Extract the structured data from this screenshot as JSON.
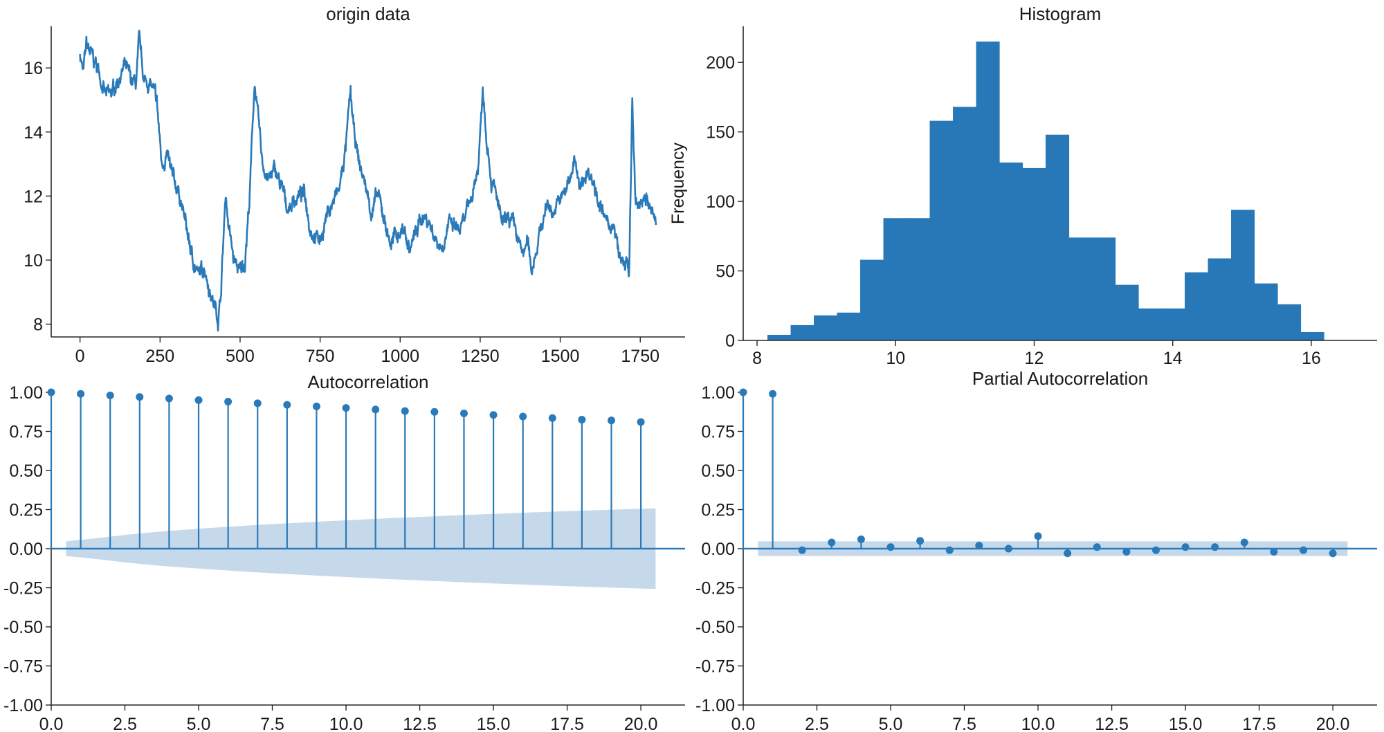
{
  "figure": {
    "theme_color": "#2a7ab9",
    "bar_color": "#2878b8",
    "band_color": "#c3d7ea",
    "background": "#ffffff"
  },
  "chart_data": [
    {
      "id": "origin",
      "type": "line",
      "title": "origin data",
      "xlabel": "",
      "ylabel": "",
      "xlim": [
        -90,
        1890
      ],
      "ylim": [
        7.6,
        17.3
      ],
      "xticks": [
        0,
        250,
        500,
        750,
        1000,
        1250,
        1500,
        1750
      ],
      "xtick_labels": [
        "0",
        "250",
        "500",
        "750",
        "1000",
        "1250",
        "1500",
        "1750"
      ],
      "yticks": [
        8,
        10,
        12,
        14,
        16
      ],
      "ytick_labels": [
        "8",
        "10",
        "12",
        "14",
        "16"
      ],
      "n_points": 1800,
      "anchors": [
        [
          0,
          16.5
        ],
        [
          10,
          15.8
        ],
        [
          20,
          16.7
        ],
        [
          40,
          16.3
        ],
        [
          60,
          15.9
        ],
        [
          80,
          15.1
        ],
        [
          100,
          15.2
        ],
        [
          120,
          15.7
        ],
        [
          140,
          16.0
        ],
        [
          160,
          15.6
        ],
        [
          175,
          15.5
        ],
        [
          185,
          16.8
        ],
        [
          200,
          15.6
        ],
        [
          220,
          15.5
        ],
        [
          240,
          14.9
        ],
        [
          255,
          13.0
        ],
        [
          270,
          13.3
        ],
        [
          290,
          12.5
        ],
        [
          310,
          12.1
        ],
        [
          330,
          11.1
        ],
        [
          350,
          10.1
        ],
        [
          370,
          9.5
        ],
        [
          390,
          9.8
        ],
        [
          410,
          8.9
        ],
        [
          420,
          8.6
        ],
        [
          432,
          8.2
        ],
        [
          440,
          9.0
        ],
        [
          455,
          12.1
        ],
        [
          465,
          11.0
        ],
        [
          480,
          10.0
        ],
        [
          500,
          9.6
        ],
        [
          515,
          10.0
        ],
        [
          530,
          12.0
        ],
        [
          545,
          15.6
        ],
        [
          560,
          14.0
        ],
        [
          570,
          13.0
        ],
        [
          590,
          12.5
        ],
        [
          610,
          12.8
        ],
        [
          630,
          12.2
        ],
        [
          650,
          11.6
        ],
        [
          670,
          11.9
        ],
        [
          700,
          12.1
        ],
        [
          710,
          11.6
        ],
        [
          720,
          11.0
        ],
        [
          750,
          10.6
        ],
        [
          770,
          11.4
        ],
        [
          790,
          11.8
        ],
        [
          810,
          12.2
        ],
        [
          830,
          13.5
        ],
        [
          845,
          15.2
        ],
        [
          855,
          14.0
        ],
        [
          870,
          13.1
        ],
        [
          890,
          12.4
        ],
        [
          910,
          11.5
        ],
        [
          930,
          12.0
        ],
        [
          950,
          11.3
        ],
        [
          970,
          10.5
        ],
        [
          990,
          10.8
        ],
        [
          1010,
          11.0
        ],
        [
          1030,
          10.3
        ],
        [
          1050,
          10.9
        ],
        [
          1070,
          11.4
        ],
        [
          1090,
          11.2
        ],
        [
          1110,
          10.7
        ],
        [
          1130,
          10.4
        ],
        [
          1150,
          11.1
        ],
        [
          1170,
          11.0
        ],
        [
          1190,
          10.9
        ],
        [
          1210,
          11.5
        ],
        [
          1230,
          12.3
        ],
        [
          1245,
          13.0
        ],
        [
          1258,
          15.5
        ],
        [
          1268,
          14.2
        ],
        [
          1285,
          12.5
        ],
        [
          1300,
          12.0
        ],
        [
          1320,
          11.0
        ],
        [
          1340,
          11.3
        ],
        [
          1360,
          10.9
        ],
        [
          1380,
          10.2
        ],
        [
          1400,
          10.5
        ],
        [
          1410,
          9.7
        ],
        [
          1425,
          10.4
        ],
        [
          1440,
          11.0
        ],
        [
          1460,
          11.8
        ],
        [
          1480,
          11.5
        ],
        [
          1500,
          11.9
        ],
        [
          1515,
          12.1
        ],
        [
          1530,
          12.6
        ],
        [
          1545,
          13.2
        ],
        [
          1560,
          12.1
        ],
        [
          1575,
          12.6
        ],
        [
          1590,
          12.8
        ],
        [
          1610,
          12.3
        ],
        [
          1630,
          11.5
        ],
        [
          1650,
          11.0
        ],
        [
          1660,
          11.2
        ],
        [
          1670,
          10.8
        ],
        [
          1690,
          9.9
        ],
        [
          1710,
          9.9
        ],
        [
          1715,
          9.3
        ],
        [
          1725,
          15.0
        ],
        [
          1735,
          11.6
        ],
        [
          1750,
          11.8
        ],
        [
          1765,
          12.1
        ],
        [
          1780,
          11.6
        ],
        [
          1790,
          11.3
        ],
        [
          1799,
          11.2
        ]
      ]
    },
    {
      "id": "histogram",
      "type": "bar",
      "title": "Histogram",
      "xlabel": "",
      "ylabel": "Frequency",
      "xlim": [
        7.8,
        16.95
      ],
      "ylim": [
        0,
        226
      ],
      "xticks": [
        8,
        10,
        12,
        14,
        16
      ],
      "xtick_labels": [
        "8",
        "10",
        "12",
        "14",
        "16"
      ],
      "yticks": [
        0,
        50,
        100,
        150,
        200
      ],
      "ytick_labels": [
        "0",
        "50",
        "100",
        "150",
        "200"
      ],
      "bins": 26,
      "bin_start": 8.15,
      "bin_end": 16.85,
      "values": [
        4,
        11,
        18,
        20,
        58,
        88,
        88,
        158,
        168,
        215,
        128,
        124,
        148,
        74,
        74,
        40,
        23,
        23,
        49,
        59,
        94,
        41,
        26,
        6,
        0,
        0
      ]
    },
    {
      "id": "acf",
      "type": "stem",
      "title": "Autocorrelation",
      "xlabel": "",
      "ylabel": "",
      "xlim": [
        0,
        21.5
      ],
      "ylim": [
        -1.0,
        1.0
      ],
      "xticks": [
        0.0,
        2.5,
        5.0,
        7.5,
        10.0,
        12.5,
        15.0,
        17.5,
        20.0
      ],
      "xtick_labels": [
        "0.0",
        "2.5",
        "5.0",
        "7.5",
        "10.0",
        "12.5",
        "15.0",
        "17.5",
        "20.0"
      ],
      "yticks": [
        1.0,
        0.75,
        0.5,
        0.25,
        0.0,
        -0.25,
        -0.5,
        -0.75,
        -1.0
      ],
      "ytick_labels": [
        "1.00",
        "0.75",
        "0.50",
        "0.25",
        "0.00",
        "-0.25",
        "-0.50",
        "-0.75",
        "-1.00"
      ],
      "lags": [
        0,
        1,
        2,
        3,
        4,
        5,
        6,
        7,
        8,
        9,
        10,
        11,
        12,
        13,
        14,
        15,
        16,
        17,
        18,
        19,
        20
      ],
      "values": [
        1.0,
        0.99,
        0.98,
        0.97,
        0.96,
        0.95,
        0.94,
        0.93,
        0.92,
        0.91,
        0.9,
        0.89,
        0.88,
        0.875,
        0.865,
        0.855,
        0.845,
        0.835,
        0.825,
        0.82,
        0.81
      ],
      "confint_x": [
        0.5,
        20.5
      ],
      "confint": [
        0.047,
        0.066,
        0.088,
        0.106,
        0.121,
        0.134,
        0.146,
        0.157,
        0.167,
        0.177,
        0.186,
        0.195,
        0.203,
        0.211,
        0.219,
        0.226,
        0.233,
        0.24,
        0.246,
        0.252,
        0.258
      ]
    },
    {
      "id": "pacf",
      "type": "stem",
      "title": "Partial Autocorrelation",
      "xlabel": "",
      "ylabel": "",
      "xlim": [
        0,
        21.5
      ],
      "ylim": [
        -1.0,
        1.0
      ],
      "xticks": [
        0.0,
        2.5,
        5.0,
        7.5,
        10.0,
        12.5,
        15.0,
        17.5,
        20.0
      ],
      "xtick_labels": [
        "0.0",
        "2.5",
        "5.0",
        "7.5",
        "10.0",
        "12.5",
        "15.0",
        "17.5",
        "20.0"
      ],
      "yticks": [
        1.0,
        0.75,
        0.5,
        0.25,
        0.0,
        -0.25,
        -0.5,
        -0.75,
        -1.0
      ],
      "ytick_labels": [
        "1.00",
        "0.75",
        "0.50",
        "0.25",
        "0.00",
        "-0.25",
        "-0.50",
        "-0.75",
        "-1.00"
      ],
      "lags": [
        0,
        1,
        2,
        3,
        4,
        5,
        6,
        7,
        8,
        9,
        10,
        11,
        12,
        13,
        14,
        15,
        16,
        17,
        18,
        19,
        20
      ],
      "values": [
        1.0,
        0.99,
        -0.01,
        0.04,
        0.06,
        0.01,
        0.05,
        -0.01,
        0.02,
        0.0,
        0.08,
        -0.03,
        0.01,
        -0.02,
        -0.01,
        0.01,
        0.01,
        0.04,
        -0.02,
        -0.01,
        -0.03
      ],
      "confint_x": [
        0.5,
        20.5
      ],
      "confint": [
        0.047
      ]
    }
  ]
}
